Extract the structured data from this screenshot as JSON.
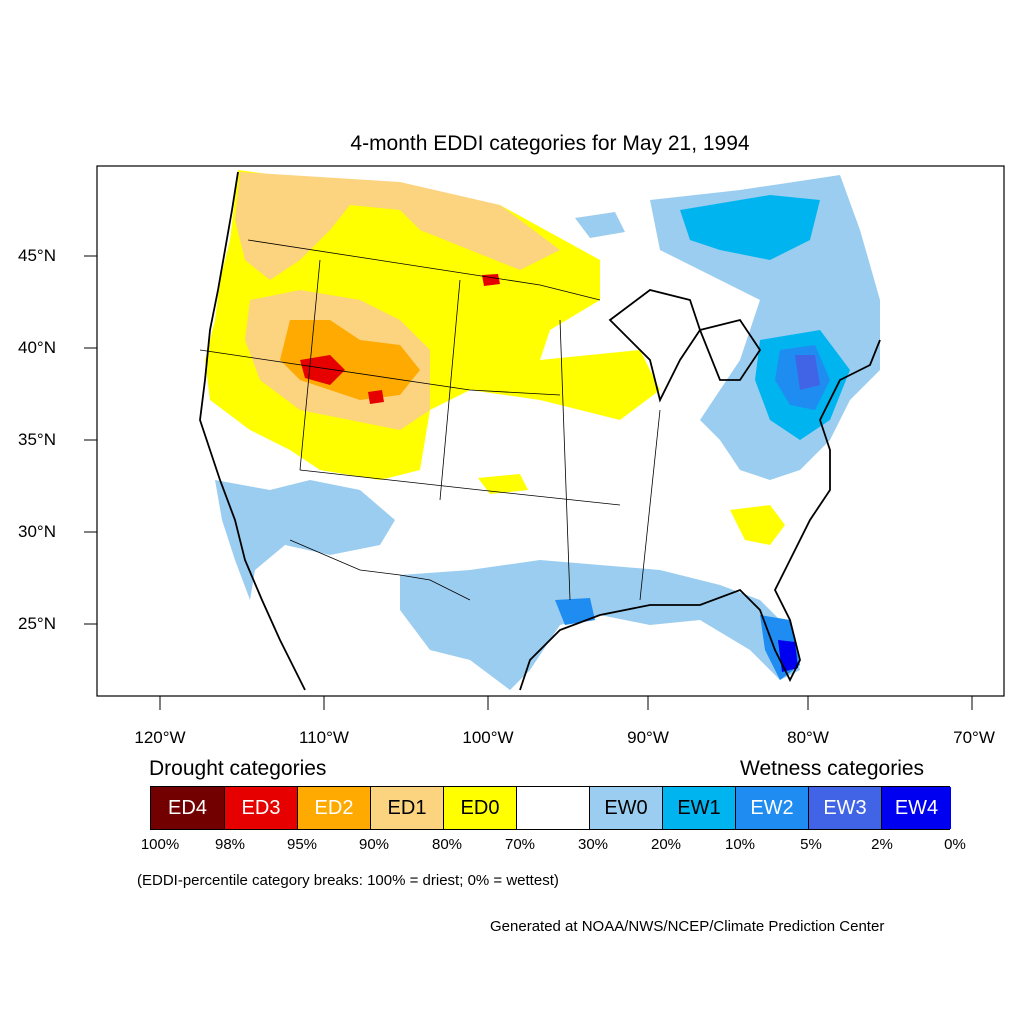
{
  "title": "4-month EDDI categories for May 21, 1994",
  "lat_labels": [
    "45°N",
    "40°N",
    "35°N",
    "30°N",
    "25°N"
  ],
  "lon_labels": [
    "120°W",
    "110°W",
    "100°W",
    "90°W",
    "80°W",
    "70°W"
  ],
  "legend": {
    "drought_heading": "Drought categories",
    "wetness_heading": "Wetness categories",
    "categories": [
      {
        "label": "ED4",
        "color": "#730000",
        "text_color": "#ffffff"
      },
      {
        "label": "ED3",
        "color": "#e60000",
        "text_color": "#ffffff"
      },
      {
        "label": "ED2",
        "color": "#ffaa00",
        "text_color": "#ffffff"
      },
      {
        "label": "ED1",
        "color": "#fcd37f",
        "text_color": "#000000"
      },
      {
        "label": "ED0",
        "color": "#ffff00",
        "text_color": "#000000"
      },
      {
        "label": "",
        "color": "#ffffff",
        "text_color": "#000000"
      },
      {
        "label": "EW0",
        "color": "#9bcdf0",
        "text_color": "#000000"
      },
      {
        "label": "EW1",
        "color": "#00b4f0",
        "text_color": "#000000"
      },
      {
        "label": "EW2",
        "color": "#1e8cf0",
        "text_color": "#ffffff"
      },
      {
        "label": "EW3",
        "color": "#4164e6",
        "text_color": "#ffffff"
      },
      {
        "label": "EW4",
        "color": "#0000f0",
        "text_color": "#ffffff"
      }
    ],
    "percentiles": [
      "100%",
      "98%",
      "95%",
      "90%",
      "80%",
      "70%",
      "30%",
      "20%",
      "10%",
      "5%",
      "2%",
      "0%"
    ]
  },
  "note": "(EDDI-percentile category breaks: 100% = driest; 0% = wettest)",
  "credit": "Generated at NOAA/NWS/NCEP/Climate Prediction Center"
}
